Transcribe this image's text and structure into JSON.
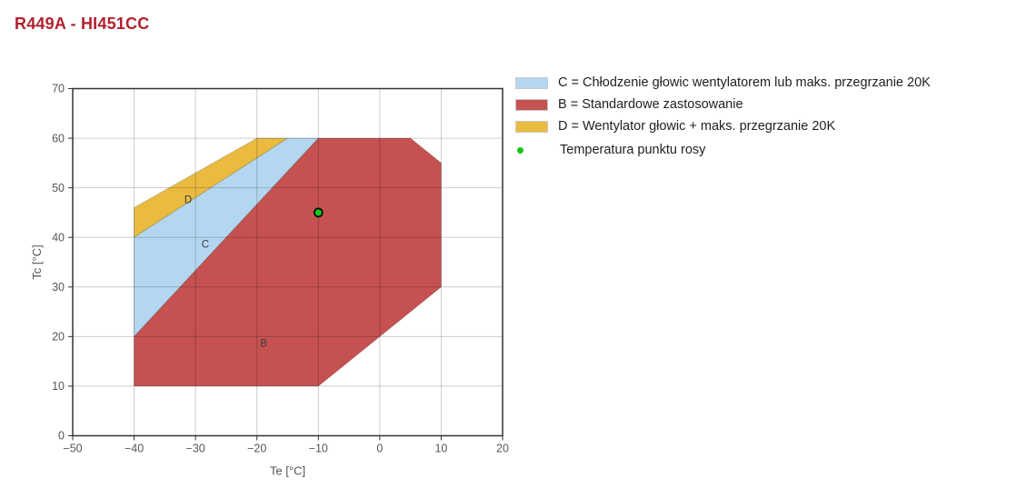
{
  "title": "R449A - HI451CC",
  "colors": {
    "title": "#B2212E",
    "region_b": "#C55150",
    "region_c": "#B4D7F1",
    "region_d": "#EABB3F",
    "dew_point": "#17C517",
    "dew_point_stroke": "#0a0a0a",
    "grid": "rgba(0,0,0,0.20)",
    "axis": "#333333",
    "tick_text": "#555555",
    "axis_title_text": "#555555",
    "region_label": "#3c3c3c",
    "legend_text": "#1f1f1f",
    "swatch_border": "#c9c9c9"
  },
  "legend": {
    "items": [
      {
        "swatch": "region_c",
        "label": "C = Chłodzenie głowic wentylatorem lub maks. przegrzanie 20K"
      },
      {
        "swatch": "region_b",
        "label": "B = Standardowe zastosowanie"
      },
      {
        "swatch": "region_d",
        "label": "D = Wentylator głowic + maks. przegrzanie 20K"
      },
      {
        "marker": "dot",
        "swatch": "dew_point",
        "label": "Temperatura punktu rosy"
      }
    ]
  },
  "chart_data": {
    "type": "area",
    "title": "R449A - HI451CC",
    "xlabel": "Te [°C]",
    "ylabel": "Tc [°C]",
    "xlim": [
      -50,
      20
    ],
    "ylim": [
      0,
      70
    ],
    "x_ticks": [
      -50,
      -40,
      -30,
      -20,
      -10,
      0,
      10,
      20
    ],
    "x_tick_labels": [
      "−50",
      "−40",
      "−30",
      "−20",
      "−10",
      "0",
      "10",
      "20"
    ],
    "y_ticks": [
      0,
      10,
      20,
      30,
      40,
      50,
      60,
      70
    ],
    "y_tick_labels": [
      "0",
      "10",
      "20",
      "30",
      "40",
      "50",
      "60",
      "70"
    ],
    "grid": true,
    "legend_position": "top-right-outside",
    "regions": [
      {
        "id": "D",
        "name": "Wentylator głowic + maks. przegrzanie 20K",
        "color_key": "region_d",
        "vertices": [
          [
            -40,
            40
          ],
          [
            -40,
            46
          ],
          [
            -20,
            60
          ],
          [
            -15,
            60
          ]
        ],
        "label": {
          "text": "D",
          "x": -31.2,
          "y": 47.6
        }
      },
      {
        "id": "C",
        "name": "Chłodzenie głowic wentylatorem lub maks. przegrzanie 20K",
        "color_key": "region_c",
        "vertices": [
          [
            -40,
            20
          ],
          [
            -40,
            40
          ],
          [
            -15,
            60
          ],
          [
            -10,
            60
          ]
        ],
        "label": {
          "text": "C",
          "x": -28.4,
          "y": 38.7
        }
      },
      {
        "id": "B",
        "name": "Standardowe zastosowanie",
        "color_key": "region_b",
        "vertices": [
          [
            -40,
            10
          ],
          [
            -40,
            20
          ],
          [
            -10,
            60
          ],
          [
            5,
            60
          ],
          [
            10,
            55
          ],
          [
            10,
            30
          ],
          [
            -10,
            10
          ]
        ],
        "label": {
          "text": "B",
          "x": -18.9,
          "y": 18.7
        }
      }
    ],
    "points": [
      {
        "name": "Temperatura punktu rosy",
        "x": -10,
        "y": 45,
        "color_key": "dew_point"
      }
    ]
  }
}
